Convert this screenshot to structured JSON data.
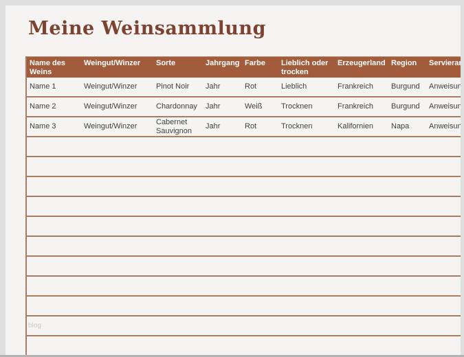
{
  "page": {
    "title": "Meine Weinsammlung",
    "watermark": "blog"
  },
  "colors": {
    "gutter_bg": "#dedede",
    "page_bg": "#f5f4f2",
    "header_bg": "#a25c3c",
    "header_text": "#ffffff",
    "border": "#ab7b5f",
    "title": "#7d4331",
    "cell_text": "#3f3f3f",
    "watermark_text": "#cbcbcb",
    "bottom_bar": "#b3b3b3"
  },
  "table": {
    "columns": [
      {
        "label": "Name des Weins"
      },
      {
        "label": "Weingut/Winzer"
      },
      {
        "label": "Sorte"
      },
      {
        "label": "Jahrgang"
      },
      {
        "label": "Farbe"
      },
      {
        "label": "Lieblich oder trocken"
      },
      {
        "label": "Erzeugerland"
      },
      {
        "label": "Region"
      },
      {
        "label": "Servieranweisungen"
      }
    ],
    "rows": [
      [
        "Name 1",
        "Weingut/Winzer",
        "Pinot Noir",
        "Jahr",
        "Rot",
        "Lieblich",
        "Frankreich",
        "Burgund",
        "Anweisungen"
      ],
      [
        "Name 2",
        "Weingut/Winzer",
        "Chardonnay",
        "Jahr",
        "Weiß",
        "Trocknen",
        "Frankreich",
        "Burgund",
        "Anweisungen"
      ],
      [
        "Name 3",
        "Weingut/Winzer",
        "Cabernet Sauvignon",
        "Jahr",
        "Rot",
        "Trocknen",
        "Kalifornien",
        "Napa",
        "Anweisungen"
      ]
    ],
    "empty_row_count": 11
  }
}
